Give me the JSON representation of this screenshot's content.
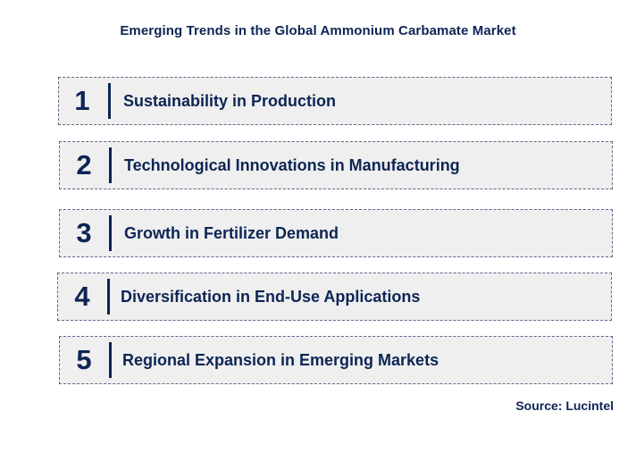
{
  "title": "Emerging Trends in the Global Ammonium Carbamate Market",
  "trends": [
    {
      "number": "1",
      "label": "Sustainability in Production"
    },
    {
      "number": "2",
      "label": "Technological Innovations in Manufacturing"
    },
    {
      "number": "3",
      "label": "Growth in Fertilizer Demand"
    },
    {
      "number": "4",
      "label": "Diversification in End-Use Applications"
    },
    {
      "number": "5",
      "label": "Regional Expansion in Emerging Markets"
    }
  ],
  "source": "Source: Lucintel",
  "colors": {
    "text": "#0d2554",
    "box_fill": "#efefef",
    "box_border": "#5a6b8a"
  }
}
